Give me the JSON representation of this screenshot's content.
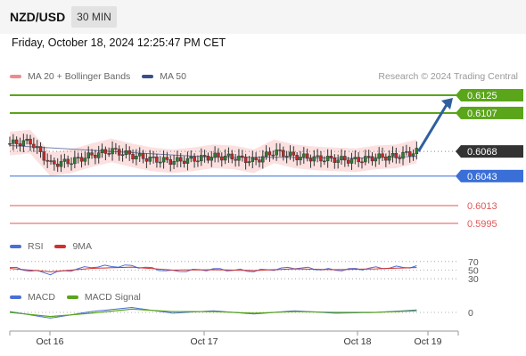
{
  "header": {
    "symbol": "NZD/USD",
    "timeframe": "30 MIN",
    "datetime": "Friday, October 18, 2024 12:25:47 PM CET",
    "credit": "Research © 2024 Trading Central"
  },
  "legend": {
    "ma20_label": "MA 20 + Bollinger Bands",
    "ma50_label": "MA 50",
    "rsi_label": "RSI",
    "rsi_ma_label": "9MA",
    "macd_label": "MACD",
    "macd_signal_label": "MACD Signal"
  },
  "colors": {
    "up_candle": "#2e7d32",
    "down_candle": "#c62828",
    "resistance": "#5aa51a",
    "support": "#3a6fd8",
    "target_low": "#e05757",
    "current_price": "#333333",
    "arrow": "#2f5f9e",
    "bollinger_fill": "#fbd6d6",
    "ma50": "#3a4f8a",
    "rsi": "#4b6fd6",
    "rsi_ma": "#d32f2f",
    "macd": "#4b6fd6",
    "macd_signal": "#5aa51a"
  },
  "chart_data": {
    "type": "line",
    "title": "NZD/USD",
    "timeframe": "30 MIN",
    "x_ticks": [
      "Oct 16",
      "Oct 17",
      "Oct 18",
      "Oct 19"
    ],
    "x_range": [
      0,
      3.3
    ],
    "ylim": [
      0.5985,
      0.6135
    ],
    "series": [
      {
        "name": "NZD/USD",
        "x": [
          0,
          0.15,
          0.3,
          0.45,
          0.6,
          0.75,
          0.9,
          1.05,
          1.2,
          1.35,
          1.5,
          1.65,
          1.8,
          1.95,
          2.1,
          2.25,
          2.4,
          2.55,
          2.7,
          2.85,
          3.0
        ],
        "values": [
          0.6076,
          0.6078,
          0.6055,
          0.6058,
          0.6064,
          0.6069,
          0.6064,
          0.606,
          0.6058,
          0.606,
          0.6063,
          0.6062,
          0.6058,
          0.6068,
          0.6063,
          0.6061,
          0.606,
          0.6059,
          0.6062,
          0.6063,
          0.6068
        ]
      },
      {
        "name": "MA 50",
        "x": [
          0,
          0.5,
          1.0,
          1.5,
          2.0,
          2.5,
          3.0
        ],
        "values": [
          0.6074,
          0.607,
          0.6066,
          0.6062,
          0.6062,
          0.6061,
          0.6063
        ]
      }
    ],
    "levels": [
      {
        "label": "0.6125",
        "value": 0.6125,
        "kind": "resistance"
      },
      {
        "label": "0.6107",
        "value": 0.6107,
        "kind": "resistance"
      },
      {
        "label": "0.6068",
        "value": 0.6068,
        "kind": "current"
      },
      {
        "label": "0.6043",
        "value": 0.6043,
        "kind": "support"
      },
      {
        "label": "0.6013",
        "value": 0.6013,
        "kind": "target"
      },
      {
        "label": "0.5995",
        "value": 0.5995,
        "kind": "target"
      }
    ],
    "rsi": {
      "ylim": [
        20,
        80
      ],
      "levels": [
        {
          "label": "70",
          "value": 70
        },
        {
          "label": "50",
          "value": 50
        },
        {
          "label": "30",
          "value": 30
        }
      ],
      "x": [
        0,
        0.3,
        0.6,
        0.9,
        1.2,
        1.5,
        1.8,
        2.1,
        2.4,
        2.7,
        3.0
      ],
      "values": [
        56,
        42,
        58,
        60,
        47,
        52,
        48,
        56,
        50,
        55,
        58
      ],
      "ma_values": [
        54,
        46,
        54,
        57,
        50,
        51,
        49,
        53,
        51,
        53,
        56
      ]
    },
    "macd": {
      "ylim": [
        -0.0012,
        0.0012
      ],
      "levels": [
        {
          "label": "0",
          "value": 0
        }
      ],
      "x": [
        0,
        0.3,
        0.6,
        0.9,
        1.2,
        1.5,
        1.8,
        2.1,
        2.4,
        2.7,
        3.0
      ],
      "values": [
        0.0001,
        -0.0007,
        0.0001,
        0.0006,
        -0.0001,
        0.0002,
        -0.0002,
        0.0002,
        -0.0001,
        0.0,
        0.0003
      ],
      "signal_values": [
        0.0,
        -0.0005,
        -0.0001,
        0.0004,
        0.0001,
        0.0001,
        -0.0001,
        0.0001,
        0.0,
        0.0,
        0.0002
      ]
    }
  }
}
